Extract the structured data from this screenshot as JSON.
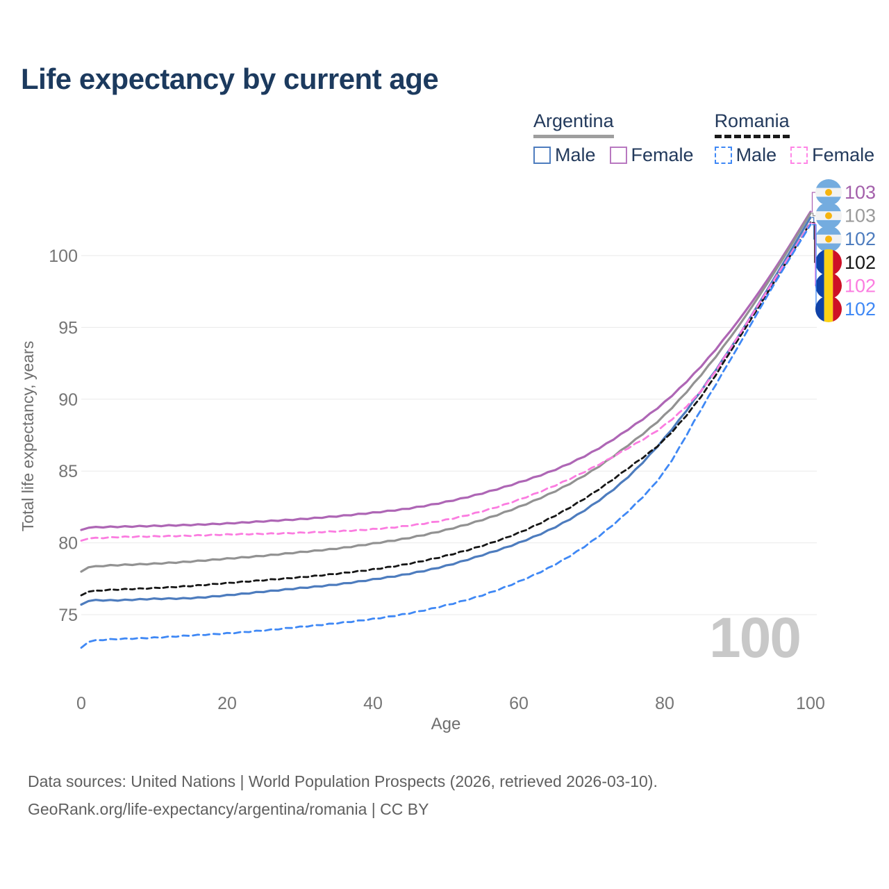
{
  "title": "Life expectancy by current age",
  "legend": {
    "groups": [
      {
        "name": "Argentina",
        "underline_color": "#9e9e9e",
        "underline_style": "solid",
        "items": [
          {
            "label": "Male",
            "color": "#4d7cbe",
            "style": "solid"
          },
          {
            "label": "Female",
            "color": "#b878c0",
            "style": "solid"
          }
        ]
      },
      {
        "name": "Romania",
        "underline_color": "#1a1a1a",
        "underline_style": "dashed",
        "items": [
          {
            "label": "Male",
            "color": "#3f88f5",
            "style": "dashed"
          },
          {
            "label": "Female",
            "color": "#ff85e6",
            "style": "dashed"
          }
        ]
      }
    ]
  },
  "chart_data": {
    "type": "line",
    "title": "Life expectancy by current age",
    "xlabel": "Age",
    "ylabel": "Total life expectancy, years",
    "x_ticks": [
      0,
      20,
      40,
      60,
      80,
      100
    ],
    "y_ticks": [
      75,
      80,
      85,
      90,
      95,
      100
    ],
    "xlim": [
      0,
      100
    ],
    "ylim": [
      72,
      104
    ],
    "grid": "horizontal",
    "legend_position": "top-right",
    "age_indicator": "100",
    "ages": [
      0,
      1,
      2,
      3,
      5,
      10,
      15,
      20,
      25,
      30,
      35,
      40,
      45,
      50,
      55,
      60,
      65,
      70,
      75,
      80,
      85,
      90,
      95,
      100
    ],
    "series": [
      {
        "name": "Argentina Female",
        "country": "Argentina",
        "sex": "Female",
        "color": "#ae66b5",
        "dash": null,
        "end_label": "103",
        "end_label_color": "#a35faa",
        "flag": "argentina",
        "values": [
          80.9,
          81.05,
          81.08,
          81.1,
          81.12,
          81.18,
          81.25,
          81.35,
          81.5,
          81.65,
          81.85,
          82.1,
          82.4,
          82.85,
          83.45,
          84.2,
          85.1,
          86.3,
          87.9,
          89.8,
          92.3,
          95.4,
          99.0,
          103.05
        ]
      },
      {
        "name": "Argentina",
        "country": "Argentina",
        "sex": "Both",
        "color": "#929292",
        "dash": null,
        "end_label": "103",
        "end_label_color": "#9a9a9a",
        "flag": "argentina",
        "values": [
          78.0,
          78.3,
          78.35,
          78.4,
          78.45,
          78.55,
          78.7,
          78.9,
          79.1,
          79.35,
          79.6,
          79.95,
          80.35,
          80.9,
          81.6,
          82.5,
          83.6,
          85.0,
          86.8,
          88.9,
          91.7,
          95.0,
          98.8,
          102.95
        ]
      },
      {
        "name": "Argentina Male",
        "country": "Argentina",
        "sex": "Male",
        "color": "#4d7cbe",
        "dash": null,
        "end_label": "102",
        "end_label_color": "#4d7cbe",
        "flag": "argentina",
        "values": [
          75.7,
          75.95,
          76.0,
          76.0,
          76.0,
          76.1,
          76.15,
          76.35,
          76.6,
          76.85,
          77.1,
          77.45,
          77.85,
          78.4,
          79.15,
          80.0,
          81.1,
          82.6,
          84.6,
          87.3,
          90.6,
          94.3,
          98.4,
          102.65
        ]
      },
      {
        "name": "Romania",
        "country": "Romania",
        "sex": "Both",
        "color": "#161616",
        "dash": "7 5",
        "end_label": "102",
        "end_label_color": "#161616",
        "flag": "romania",
        "values": [
          76.35,
          76.6,
          76.65,
          76.7,
          76.75,
          76.85,
          77.0,
          77.2,
          77.4,
          77.6,
          77.85,
          78.15,
          78.55,
          79.1,
          79.8,
          80.7,
          81.9,
          83.4,
          85.2,
          87.2,
          90.2,
          94.1,
          98.15,
          102.3
        ]
      },
      {
        "name": "Romania Female",
        "country": "Romania",
        "sex": "Female",
        "color": "#fb7ce0",
        "dash": "9 6",
        "end_label": "102",
        "end_label_color": "#fb7ce0",
        "flag": "romania",
        "values": [
          80.15,
          80.3,
          80.33,
          80.35,
          80.4,
          80.45,
          80.5,
          80.58,
          80.63,
          80.7,
          80.8,
          80.95,
          81.2,
          81.6,
          82.2,
          83.0,
          84.0,
          85.2,
          86.6,
          88.2,
          90.6,
          94.3,
          98.3,
          102.25
        ]
      },
      {
        "name": "Romania Male",
        "country": "Romania",
        "sex": "Male",
        "color": "#3f88f5",
        "dash": "9 6",
        "end_label": "102",
        "end_label_color": "#3f88f5",
        "flag": "romania",
        "values": [
          72.7,
          73.1,
          73.2,
          73.25,
          73.3,
          73.4,
          73.55,
          73.7,
          73.9,
          74.15,
          74.4,
          74.7,
          75.1,
          75.65,
          76.35,
          77.3,
          78.5,
          80.1,
          82.2,
          85.0,
          89.3,
          93.6,
          98.0,
          102.15
        ]
      }
    ]
  },
  "footer": {
    "line1": "Data sources: United Nations | World Population Prospects (2026, retrieved 2026-03-10).",
    "line2": "GeoRank.org/life-expectancy/argentina/romania | CC BY"
  }
}
